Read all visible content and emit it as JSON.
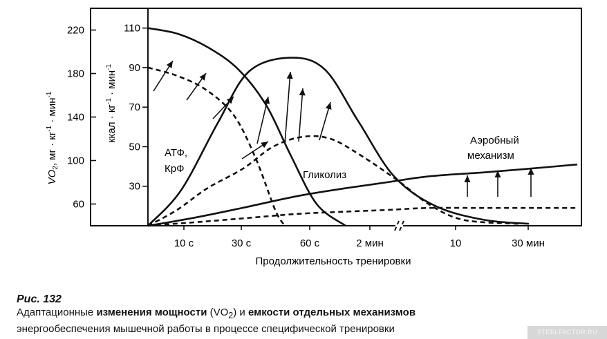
{
  "chart_data": {
    "type": "line",
    "y_left": {
      "label": "VO2, мг · кг-1 · мин-1",
      "ticks": [
        "220",
        "180",
        "140",
        "100",
        "60"
      ],
      "values": [
        220,
        180,
        140,
        100,
        60
      ],
      "range": [
        40,
        240
      ]
    },
    "y_right": {
      "label": "ккал · кг-1 · мин-1",
      "ticks": [
        "110",
        "90",
        "70",
        "50",
        "30"
      ],
      "values": [
        110,
        90,
        70,
        50,
        30
      ],
      "range": [
        10,
        120
      ]
    },
    "x_ticks": [
      "10 с",
      "30 с",
      "60 с",
      "2 мин",
      "10",
      "30 мин"
    ],
    "xlabel": "Продолжительность тренировки",
    "annotations": {
      "atp": [
        "АТФ,",
        "КрФ"
      ],
      "glycolysis": "Гликолиз",
      "aerobic": [
        "Аэробный",
        "механизм"
      ]
    },
    "series": [
      {
        "name": "АТФ, КрФ",
        "capacity_solid": [
          110,
          107,
          100,
          89,
          71,
          46,
          21,
          10
        ],
        "power_dashed": [
          90,
          86,
          79,
          66,
          44,
          18,
          10
        ]
      },
      {
        "name": "Гликолиз",
        "capacity_solid": [
          10,
          28,
          62,
          88,
          95,
          89,
          63,
          35,
          20,
          13,
          11
        ],
        "power_dashed": [
          10,
          18,
          29,
          39,
          50,
          55,
          54,
          46,
          33,
          21,
          13,
          11
        ]
      },
      {
        "name": "Аэробный механизм",
        "capacity_solid": [
          10,
          14,
          19,
          25,
          29,
          32,
          35,
          37,
          39,
          41
        ],
        "power_dashed": [
          10,
          12,
          14,
          16,
          17,
          18,
          19,
          19,
          19,
          19
        ]
      }
    ]
  },
  "caption": {
    "number": "Рис. 132",
    "line1_a": "Адаптационные ",
    "line1_b": "изменения мощности",
    "line1_c": " (VO",
    "line1_sub": "2",
    "line1_d": ") и ",
    "line1_e": "емкости отдельных механизмов",
    "line2": "энергообеспечения мышечной работы в процессе специфической тренировки"
  },
  "watermark": "STEELFACTOR.RU"
}
